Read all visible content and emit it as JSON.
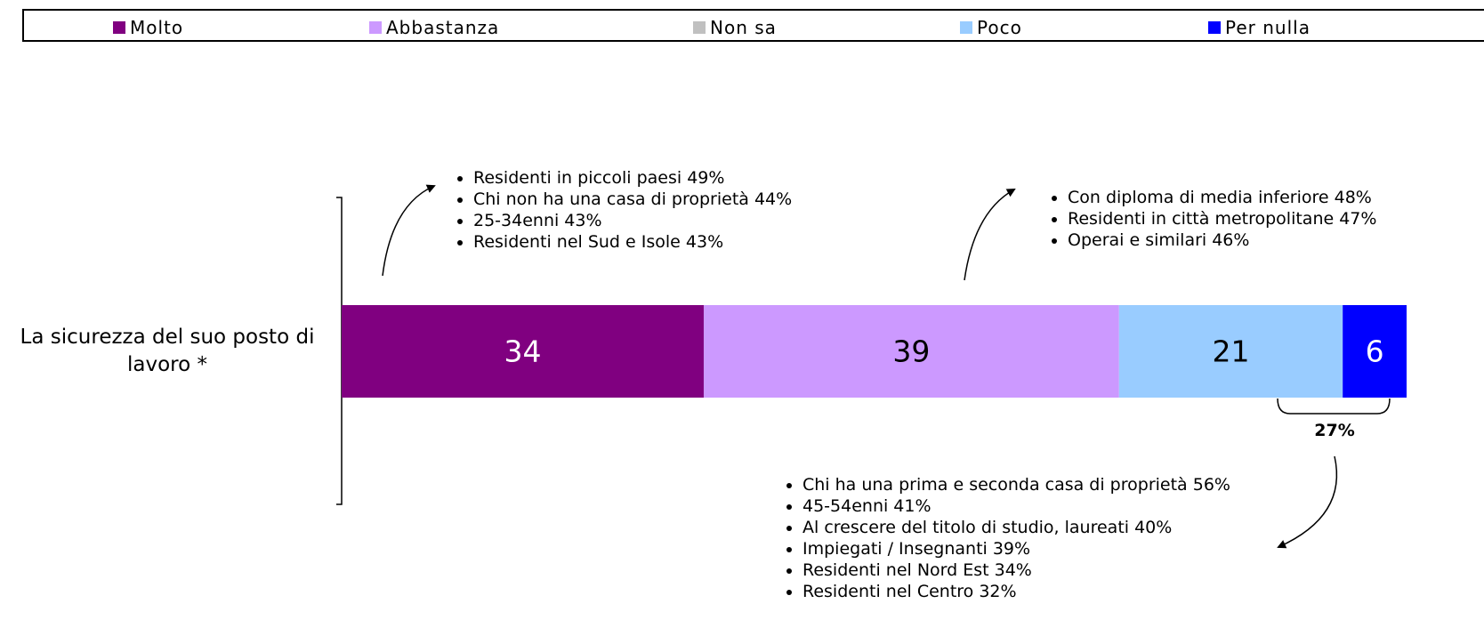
{
  "chart_data": {
    "type": "bar",
    "orientation": "horizontal",
    "stacked": true,
    "categories": [
      "La sicurezza del suo posto di lavoro *"
    ],
    "series": [
      {
        "name": "Molto",
        "color": "#800080",
        "label_color": "#ffffff",
        "values": [
          34
        ]
      },
      {
        "name": "Abbastanza",
        "color": "#cc99ff",
        "label_color": "#000000",
        "values": [
          39
        ]
      },
      {
        "name": "Non sa",
        "color": "#c0c0c0",
        "label_color": "#000000",
        "values": [
          0
        ]
      },
      {
        "name": "Poco",
        "color": "#99ccff",
        "label_color": "#000000",
        "values": [
          21
        ]
      },
      {
        "name": "Per nulla",
        "color": "#0000ff",
        "label_color": "#ffffff",
        "values": [
          6
        ]
      }
    ],
    "xlim": [
      0,
      100
    ],
    "legend": "top",
    "bracket": {
      "value": 27,
      "label": "27%"
    },
    "annotations": [
      {
        "items": [
          "Residenti in piccoli paesi 49%",
          "Chi non ha una casa di proprietà 44%",
          "25-34enni 43%",
          "Residenti nel Sud e Isole 43%"
        ]
      },
      {
        "items": [
          "Con diploma di media inferiore 48%",
          "Residenti in città metropolitane 47%",
          "Operai e similari 46%"
        ]
      },
      {
        "items": [
          "Chi ha una prima e seconda casa di proprietà 56%",
          "45-54enni 41%",
          "Al crescere del titolo di studio, laureati 40%",
          "Impiegati / Insegnanti 39%",
          "Residenti nel Nord Est 34%",
          "Residenti nel Centro 32%"
        ]
      }
    ]
  }
}
